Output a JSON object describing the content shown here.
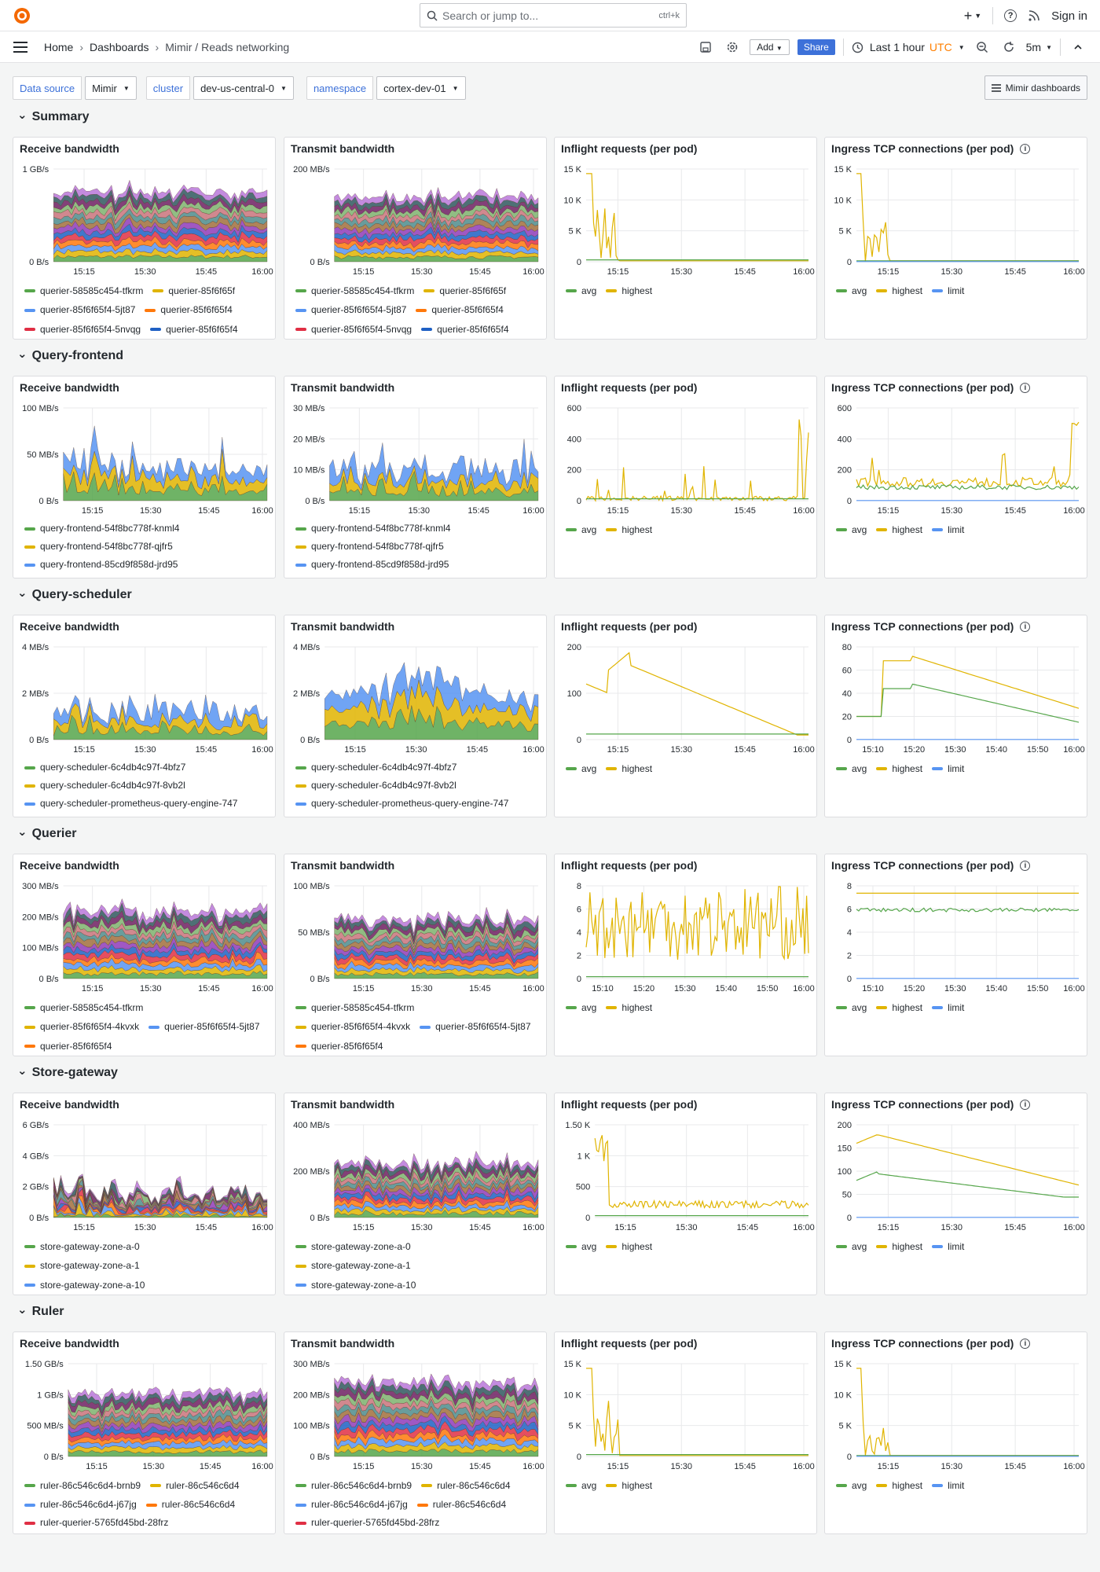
{
  "topbar": {
    "search_placeholder": "Search or jump to...",
    "search_shortcut": "ctrl+k",
    "plus_label": "+",
    "help_label": "?",
    "signin_label": "Sign in"
  },
  "navbar": {
    "breadcrumbs": [
      "Home",
      "Dashboards",
      "Mimir / Reads networking"
    ],
    "add_label": "Add",
    "share_label": "Share",
    "timerange_label": "Last 1 hour",
    "timezone_label": "UTC",
    "refresh_label": "5m"
  },
  "variables": {
    "datasource": {
      "label": "Data source",
      "value": "Mimir"
    },
    "cluster": {
      "label": "cluster",
      "value": "dev-us-central-0"
    },
    "namespace": {
      "label": "namespace",
      "value": "cortex-dev-01"
    },
    "dashboards_button": "Mimir dashboards"
  },
  "colors": {
    "green": "#56a64b",
    "yellow": "#e0b400",
    "blue": "#5794f2",
    "orange": "#ff780a",
    "red": "#e02f44",
    "accent": "#3d71d9",
    "utc": "#ff7f00"
  },
  "panel_titles": [
    "Receive bandwidth",
    "Transmit bandwidth",
    "Inflight requests (per pod)",
    "Ingress TCP connections (per pod)"
  ],
  "rows": [
    {
      "title": "Summary",
      "receive": {
        "yticks": [
          "1 GB/s",
          "0 B/s"
        ],
        "xticks": [
          "15:15",
          "15:30",
          "15:45",
          "16:00"
        ],
        "legend": [
          {
            "label": "querier-58585c454-tfkrm",
            "color": "#56a64b"
          },
          {
            "label": "querier-85f6f65f",
            "color": "#e0b400"
          },
          {
            "label": "querier-85f6f65f4-5jt87",
            "color": "#5794f2"
          },
          {
            "label": "querier-85f6f65f4",
            "color": "#ff780a"
          },
          {
            "label": "querier-85f6f65f4-5nvqg",
            "color": "#e02f44"
          },
          {
            "label": "querier-85f6f65f4",
            "color": "#1f60c4"
          }
        ]
      },
      "transmit": {
        "yticks": [
          "200 MB/s",
          "0 B/s"
        ],
        "xticks": [
          "15:15",
          "15:30",
          "15:45",
          "16:00"
        ],
        "legend": [
          {
            "label": "querier-58585c454-tfkrm",
            "color": "#56a64b"
          },
          {
            "label": "querier-85f6f65f",
            "color": "#e0b400"
          },
          {
            "label": "querier-85f6f65f4-5jt87",
            "color": "#5794f2"
          },
          {
            "label": "querier-85f6f65f4",
            "color": "#ff780a"
          },
          {
            "label": "querier-85f6f65f4-5nvqg",
            "color": "#e02f44"
          },
          {
            "label": "querier-85f6f65f4",
            "color": "#1f60c4"
          }
        ]
      },
      "inflight": {
        "yticks": [
          "15 K",
          "10 K",
          "5 K",
          "0"
        ],
        "xticks": [
          "15:15",
          "15:30",
          "15:45",
          "16:00"
        ],
        "legend": [
          "avg",
          "highest"
        ]
      },
      "tcp": {
        "yticks": [
          "15 K",
          "10 K",
          "5 K",
          "0"
        ],
        "xticks": [
          "15:15",
          "15:30",
          "15:45",
          "16:00"
        ],
        "legend": [
          "avg",
          "highest",
          "limit"
        ]
      }
    },
    {
      "title": "Query-frontend",
      "receive": {
        "yticks": [
          "100 MB/s",
          "50 MB/s",
          "0 B/s"
        ],
        "xticks": [
          "15:15",
          "15:30",
          "15:45",
          "16:00"
        ],
        "legend": [
          {
            "label": "query-frontend-54f8bc778f-knml4",
            "color": "#56a64b"
          },
          {
            "label": "query-frontend-54f8bc778f-qjfr5",
            "color": "#e0b400"
          },
          {
            "label": "query-frontend-85cd9f858d-jrd95",
            "color": "#5794f2"
          }
        ]
      },
      "transmit": {
        "yticks": [
          "30 MB/s",
          "20 MB/s",
          "10 MB/s",
          "0 B/s"
        ],
        "xticks": [
          "15:15",
          "15:30",
          "15:45",
          "16:00"
        ],
        "legend": [
          {
            "label": "query-frontend-54f8bc778f-knml4",
            "color": "#56a64b"
          },
          {
            "label": "query-frontend-54f8bc778f-qjfr5",
            "color": "#e0b400"
          },
          {
            "label": "query-frontend-85cd9f858d-jrd95",
            "color": "#5794f2"
          }
        ]
      },
      "inflight": {
        "yticks": [
          "600",
          "400",
          "200",
          "0"
        ],
        "xticks": [
          "15:15",
          "15:30",
          "15:45",
          "16:00"
        ],
        "legend": [
          "avg",
          "highest"
        ]
      },
      "tcp": {
        "yticks": [
          "600",
          "400",
          "200",
          "0"
        ],
        "xticks": [
          "15:15",
          "15:30",
          "15:45",
          "16:00"
        ],
        "legend": [
          "avg",
          "highest",
          "limit"
        ]
      }
    },
    {
      "title": "Query-scheduler",
      "receive": {
        "yticks": [
          "4 MB/s",
          "2 MB/s",
          "0 B/s"
        ],
        "xticks": [
          "15:15",
          "15:30",
          "15:45",
          "16:00"
        ],
        "legend": [
          {
            "label": "query-scheduler-6c4db4c97f-4bfz7",
            "color": "#56a64b"
          },
          {
            "label": "query-scheduler-6c4db4c97f-8vb2l",
            "color": "#e0b400"
          },
          {
            "label": "query-scheduler-prometheus-query-engine-747",
            "color": "#5794f2"
          }
        ]
      },
      "transmit": {
        "yticks": [
          "4 MB/s",
          "2 MB/s",
          "0 B/s"
        ],
        "xticks": [
          "15:15",
          "15:30",
          "15:45",
          "16:00"
        ],
        "legend": [
          {
            "label": "query-scheduler-6c4db4c97f-4bfz7",
            "color": "#56a64b"
          },
          {
            "label": "query-scheduler-6c4db4c97f-8vb2l",
            "color": "#e0b400"
          },
          {
            "label": "query-scheduler-prometheus-query-engine-747",
            "color": "#5794f2"
          }
        ]
      },
      "inflight": {
        "yticks": [
          "200",
          "100",
          "0"
        ],
        "xticks": [
          "15:15",
          "15:30",
          "15:45",
          "16:00"
        ],
        "legend": [
          "avg",
          "highest"
        ]
      },
      "tcp": {
        "yticks": [
          "80",
          "60",
          "40",
          "20",
          "0"
        ],
        "xticks": [
          "15:10",
          "15:20",
          "15:30",
          "15:40",
          "15:50",
          "16:00"
        ],
        "legend": [
          "avg",
          "highest",
          "limit"
        ]
      }
    },
    {
      "title": "Querier",
      "receive": {
        "yticks": [
          "300 MB/s",
          "200 MB/s",
          "100 MB/s",
          "0 B/s"
        ],
        "xticks": [
          "15:15",
          "15:30",
          "15:45",
          "16:00"
        ],
        "legend": [
          {
            "label": "querier-58585c454-tfkrm",
            "color": "#56a64b"
          },
          {
            "label": "querier-85f6f65f4-4kvxk",
            "color": "#e0b400"
          },
          {
            "label": "querier-85f6f65f4-5jt87",
            "color": "#5794f2"
          },
          {
            "label": "querier-85f6f65f4",
            "color": "#ff780a"
          }
        ]
      },
      "transmit": {
        "yticks": [
          "100 MB/s",
          "50 MB/s",
          "0 B/s"
        ],
        "xticks": [
          "15:15",
          "15:30",
          "15:45",
          "16:00"
        ],
        "legend": [
          {
            "label": "querier-58585c454-tfkrm",
            "color": "#56a64b"
          },
          {
            "label": "querier-85f6f65f4-4kvxk",
            "color": "#e0b400"
          },
          {
            "label": "querier-85f6f65f4-5jt87",
            "color": "#5794f2"
          },
          {
            "label": "querier-85f6f65f4",
            "color": "#ff780a"
          }
        ]
      },
      "inflight": {
        "yticks": [
          "8",
          "6",
          "4",
          "2",
          "0"
        ],
        "xticks": [
          "15:10",
          "15:20",
          "15:30",
          "15:40",
          "15:50",
          "16:00"
        ],
        "legend": [
          "avg",
          "highest"
        ]
      },
      "tcp": {
        "yticks": [
          "8",
          "6",
          "4",
          "2",
          "0"
        ],
        "xticks": [
          "15:10",
          "15:20",
          "15:30",
          "15:40",
          "15:50",
          "16:00"
        ],
        "legend": [
          "avg",
          "highest",
          "limit"
        ]
      }
    },
    {
      "title": "Store-gateway",
      "receive": {
        "yticks": [
          "6 GB/s",
          "4 GB/s",
          "2 GB/s",
          "0 B/s"
        ],
        "xticks": [
          "15:15",
          "15:30",
          "15:45",
          "16:00"
        ],
        "legend": [
          {
            "label": "store-gateway-zone-a-0",
            "color": "#56a64b"
          },
          {
            "label": "store-gateway-zone-a-1",
            "color": "#e0b400"
          },
          {
            "label": "store-gateway-zone-a-10",
            "color": "#5794f2"
          }
        ]
      },
      "transmit": {
        "yticks": [
          "400 MB/s",
          "200 MB/s",
          "0 B/s"
        ],
        "xticks": [
          "15:15",
          "15:30",
          "15:45",
          "16:00"
        ],
        "legend": [
          {
            "label": "store-gateway-zone-a-0",
            "color": "#56a64b"
          },
          {
            "label": "store-gateway-zone-a-1",
            "color": "#e0b400"
          },
          {
            "label": "store-gateway-zone-a-10",
            "color": "#5794f2"
          }
        ]
      },
      "inflight": {
        "yticks": [
          "1.50 K",
          "1 K",
          "500",
          "0"
        ],
        "xticks": [
          "15:15",
          "15:30",
          "15:45",
          "16:00"
        ],
        "legend": [
          "avg",
          "highest"
        ]
      },
      "tcp": {
        "yticks": [
          "200",
          "150",
          "100",
          "50",
          "0"
        ],
        "xticks": [
          "15:15",
          "15:30",
          "15:45",
          "16:00"
        ],
        "legend": [
          "avg",
          "highest",
          "limit"
        ]
      }
    },
    {
      "title": "Ruler",
      "receive": {
        "yticks": [
          "1.50 GB/s",
          "1 GB/s",
          "500 MB/s",
          "0 B/s"
        ],
        "xticks": [
          "15:15",
          "15:30",
          "15:45",
          "16:00"
        ],
        "legend": [
          {
            "label": "ruler-86c546c6d4-brnb9",
            "color": "#56a64b"
          },
          {
            "label": "ruler-86c546c6d4",
            "color": "#e0b400"
          },
          {
            "label": "ruler-86c546c6d4-j67jg",
            "color": "#5794f2"
          },
          {
            "label": "ruler-86c546c6d4",
            "color": "#ff780a"
          },
          {
            "label": "ruler-querier-5765fd45bd-28frz",
            "color": "#e02f44"
          }
        ]
      },
      "transmit": {
        "yticks": [
          "300 MB/s",
          "200 MB/s",
          "100 MB/s",
          "0 B/s"
        ],
        "xticks": [
          "15:15",
          "15:30",
          "15:45",
          "16:00"
        ],
        "legend": [
          {
            "label": "ruler-86c546c6d4-brnb9",
            "color": "#56a64b"
          },
          {
            "label": "ruler-86c546c6d4",
            "color": "#e0b400"
          },
          {
            "label": "ruler-86c546c6d4-j67jg",
            "color": "#5794f2"
          },
          {
            "label": "ruler-86c546c6d4",
            "color": "#ff780a"
          },
          {
            "label": "ruler-querier-5765fd45bd-28frz",
            "color": "#e02f44"
          }
        ]
      },
      "inflight": {
        "yticks": [
          "15 K",
          "10 K",
          "5 K",
          "0"
        ],
        "xticks": [
          "15:15",
          "15:30",
          "15:45",
          "16:00"
        ],
        "legend": [
          "avg",
          "highest"
        ]
      },
      "tcp": {
        "yticks": [
          "15 K",
          "10 K",
          "5 K",
          "0"
        ],
        "xticks": [
          "15:15",
          "15:30",
          "15:45",
          "16:00"
        ],
        "legend": [
          "avg",
          "highest",
          "limit"
        ]
      }
    }
  ]
}
